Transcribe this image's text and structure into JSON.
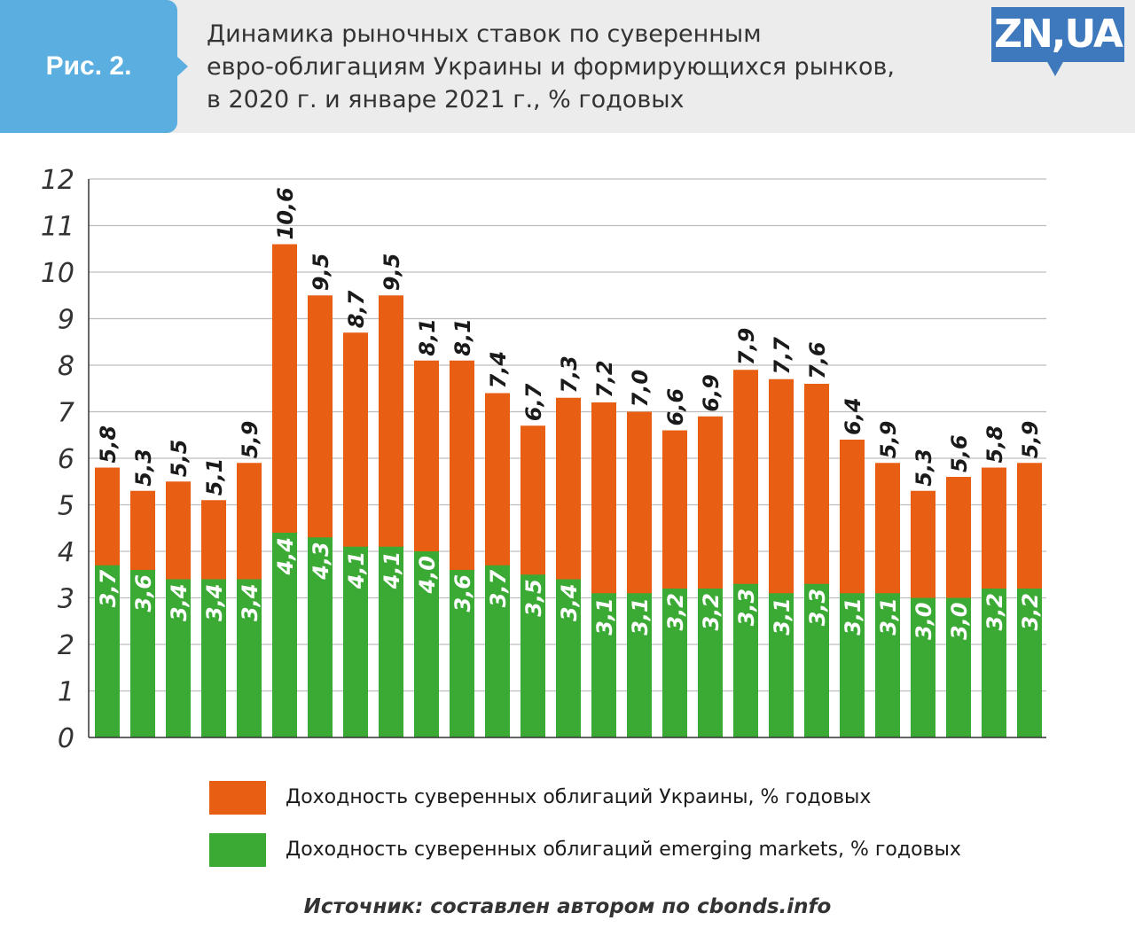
{
  "header": {
    "figure_label": "Рис. 2.",
    "logo_text": "ZN,UA",
    "title_lines": [
      "Динамика рыночных ставок по суверенным",
      "евро-облигациям Украины и формирующихся рынков,",
      "в 2020 г. и январе 2021 г., % годовых"
    ]
  },
  "chart_data": {
    "type": "bar",
    "title": "Динамика рыночных ставок по суверенным евро-облигациям Украины и формирующихся рынков, в 2020 г. и январе 2021 г., % годовых",
    "xlabel": "",
    "ylabel": "",
    "ylim": [
      0,
      12
    ],
    "y_ticks": [
      0,
      1,
      2,
      3,
      4,
      5,
      6,
      7,
      8,
      9,
      10,
      11,
      12
    ],
    "grid": true,
    "legend_position": "bottom",
    "series": [
      {
        "name": "Доходность суверенных облигаций Украины, % годовых",
        "color": "#e85e13",
        "values": [
          5.8,
          5.3,
          5.5,
          5.1,
          5.9,
          10.6,
          9.5,
          8.7,
          9.5,
          8.1,
          8.1,
          7.4,
          6.7,
          7.3,
          7.2,
          7.0,
          6.6,
          6.9,
          7.9,
          7.7,
          7.6,
          6.4,
          5.9,
          5.3,
          5.6,
          5.8,
          5.9
        ]
      },
      {
        "name": "Доходность суверенных облигаций emerging markets, % годовых",
        "color": "#3aaa35",
        "values": [
          3.7,
          3.6,
          3.4,
          3.4,
          3.4,
          4.4,
          4.3,
          4.1,
          4.1,
          4.0,
          3.6,
          3.7,
          3.5,
          3.4,
          3.1,
          3.1,
          3.2,
          3.2,
          3.3,
          3.1,
          3.3,
          3.1,
          3.1,
          3.0,
          3.0,
          3.2,
          3.2
        ]
      }
    ]
  },
  "legend": {
    "ukraine_label": "Доходность суверенных облигаций Украины, % годовых",
    "em_label": "Доходность суверенных облигаций emerging markets, % годовых"
  },
  "source": "Источник: составлен автором по cbonds.info"
}
